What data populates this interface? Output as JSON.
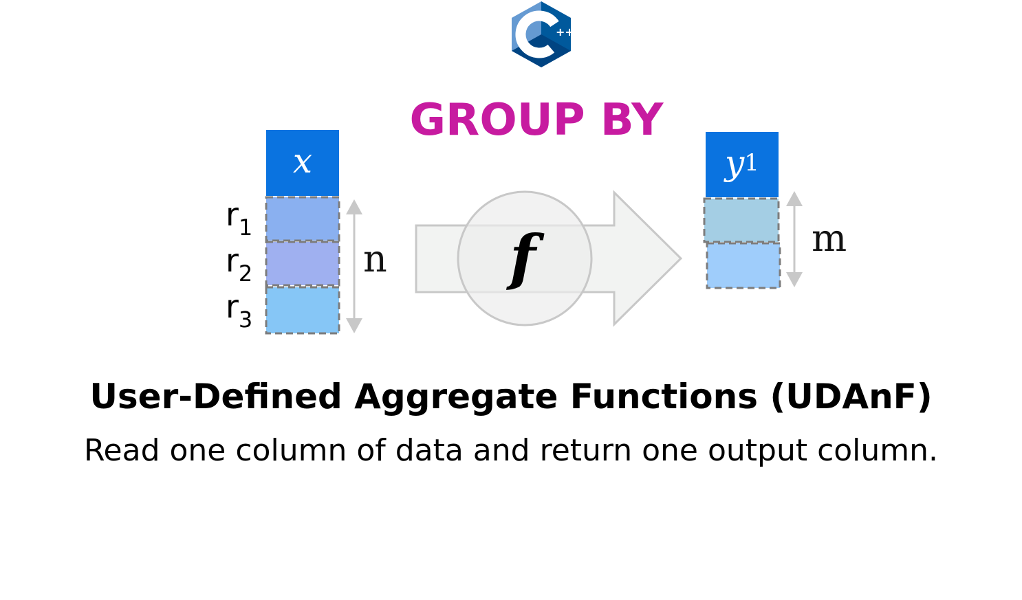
{
  "heading": "GROUP BY",
  "logo": {
    "icon": "cpp-logo-icon",
    "letter": "C",
    "plus": "++"
  },
  "input_column": {
    "header": "x",
    "rows": [
      {
        "label": "r",
        "index": "1",
        "color": "#8ab0f0"
      },
      {
        "label": "r",
        "index": "2",
        "color": "#9fb0f0"
      },
      {
        "label": "r",
        "index": "3",
        "color": "#86c6f6"
      }
    ],
    "size_label": "n"
  },
  "function": {
    "symbol": "f"
  },
  "output_column": {
    "header_var": "y",
    "header_index": "1",
    "rows": [
      {
        "color": "#a4cee4"
      },
      {
        "color": "#9fcdfb"
      }
    ],
    "size_label": "m"
  },
  "title": "User-Defined Aggregate Functions (UDAnF)",
  "subtitle": "Read one column of data and return one output column.",
  "colors": {
    "heading": "#c71ba0",
    "column_header": "#0a73e0",
    "arrow_fill": "#f2f3f2",
    "arrow_stroke": "#c8c8c8",
    "logo_dark": "#00599c",
    "logo_light": "#659ad2"
  }
}
